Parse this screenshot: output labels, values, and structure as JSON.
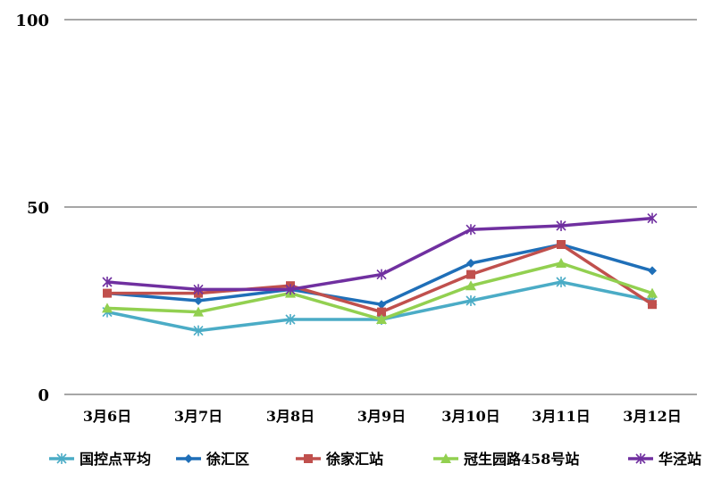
{
  "chart_data": {
    "type": "line",
    "title": "",
    "xlabel": "",
    "ylabel": "",
    "ylim": [
      0,
      100
    ],
    "yticks": [
      "0",
      "50",
      "100"
    ],
    "categories": [
      "3月6日",
      "3月7日",
      "3月8日",
      "3月9日",
      "3月10日",
      "3月11日",
      "3月12日"
    ],
    "legend_position": "bottom",
    "series": [
      {
        "name": "国控点平均",
        "color": "#4bacc6",
        "marker": "asterisk",
        "values": [
          22,
          17,
          20,
          20,
          25,
          30,
          25
        ]
      },
      {
        "name": "徐汇区",
        "color": "#1f6fb8",
        "marker": "diamond",
        "values": [
          27,
          25,
          28,
          24,
          35,
          40,
          33
        ]
      },
      {
        "name": "徐家汇站",
        "color": "#c0504d",
        "marker": "square",
        "values": [
          27,
          27,
          29,
          22,
          32,
          40,
          24
        ]
      },
      {
        "name": "冠生园路458号站",
        "color": "#92d050",
        "marker": "triangle",
        "values": [
          23,
          22,
          27,
          20,
          29,
          35,
          27
        ]
      },
      {
        "name": "华泾站",
        "color": "#7030a0",
        "marker": "asterisk",
        "values": [
          30,
          28,
          28,
          32,
          44,
          45,
          47
        ]
      }
    ]
  }
}
